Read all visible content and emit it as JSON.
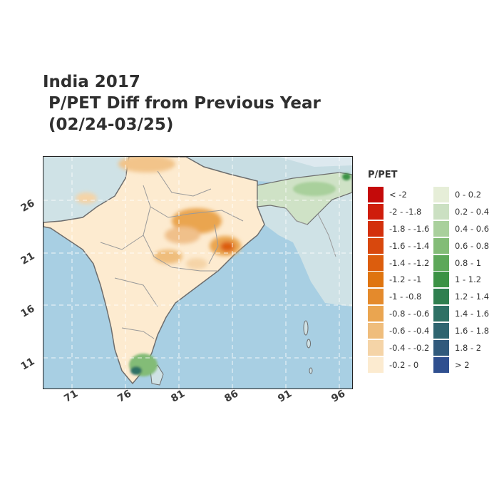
{
  "title": {
    "line1": "India 2017",
    "line2": " P/PET Diff from Previous Year",
    "line3": " (02/24-03/25)"
  },
  "map": {
    "y_ticks": [
      "26",
      "21",
      "16",
      "11"
    ],
    "x_ticks": [
      "71",
      "76",
      "81",
      "86",
      "91",
      "96"
    ],
    "colors": {
      "ocean": "#a8cfe3",
      "land_neutral": "#fdebd0",
      "outside": "#cfe2e6",
      "border": "#6d6d6d"
    }
  },
  "legend": {
    "title": "P/PET",
    "col1": [
      {
        "label": "< -2",
        "color": "#c40a0a"
      },
      {
        "label": "-2 - -1.8",
        "color": "#cf1d0b"
      },
      {
        "label": "-1.8 - -1.6",
        "color": "#d3300c"
      },
      {
        "label": "-1.6 - -1.4",
        "color": "#d8480d"
      },
      {
        "label": "-1.4 - -1.2",
        "color": "#dc5d0d"
      },
      {
        "label": "-1.2 - -1",
        "color": "#df740f"
      },
      {
        "label": "-1 - -0.8",
        "color": "#e48a2c"
      },
      {
        "label": "-0.8 - -0.6",
        "color": "#eaa550"
      },
      {
        "label": "-0.6 - -0.4",
        "color": "#efbd7c"
      },
      {
        "label": "-0.4 - -0.2",
        "color": "#f5d4a7"
      },
      {
        "label": "-0.2 - 0",
        "color": "#fcebd0"
      }
    ],
    "col2": [
      {
        "label": "0 - 0.2",
        "color": "#e6eed8"
      },
      {
        "label": "0.2 - 0.4",
        "color": "#cbe0c2"
      },
      {
        "label": "0.4 - 0.6",
        "color": "#a9d09c"
      },
      {
        "label": "0.6 - 0.8",
        "color": "#83bc77"
      },
      {
        "label": "0.8 - 1",
        "color": "#5da859"
      },
      {
        "label": "1 - 1.2",
        "color": "#3b9244"
      },
      {
        "label": "1.2 - 1.4",
        "color": "#2f7f4f"
      },
      {
        "label": "1.4 - 1.6",
        "color": "#2e7165"
      },
      {
        "label": "1.6 - 1.8",
        "color": "#2e6570"
      },
      {
        "label": "1.8 - 2",
        "color": "#315a7c"
      },
      {
        "label": "> 2",
        "color": "#2f4f8f"
      }
    ]
  }
}
